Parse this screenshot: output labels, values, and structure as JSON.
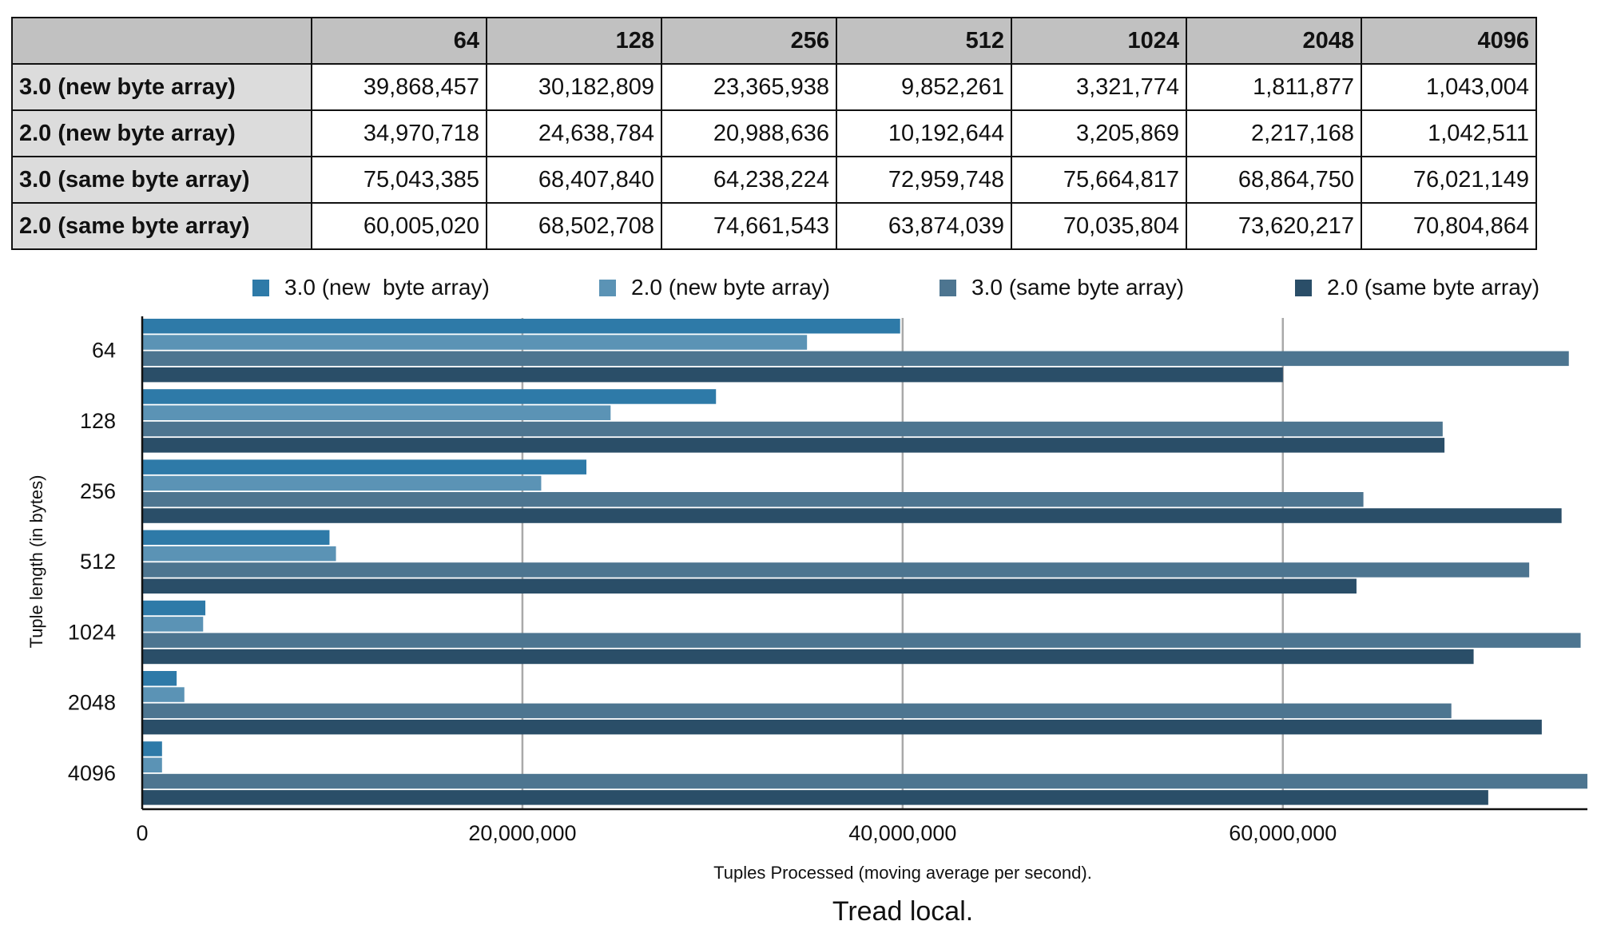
{
  "table": {
    "corner": "",
    "columns": [
      "64",
      "128",
      "256",
      "512",
      "1024",
      "2048",
      "4096"
    ],
    "rows": [
      {
        "label": "3.0 (new  byte array)",
        "cells": [
          "39,868,457",
          "30,182,809",
          "23,365,938",
          "9,852,261",
          "3,321,774",
          "1,811,877",
          "1,043,004"
        ]
      },
      {
        "label": "2.0 (new byte array)",
        "cells": [
          "34,970,718",
          "24,638,784",
          "20,988,636",
          "10,192,644",
          "3,205,869",
          "2,217,168",
          "1,042,511"
        ]
      },
      {
        "label": "3.0 (same byte array)",
        "cells": [
          "75,043,385",
          "68,407,840",
          "64,238,224",
          "72,959,748",
          "75,664,817",
          "68,864,750",
          "76,021,149"
        ]
      },
      {
        "label": "2.0 (same byte array)",
        "cells": [
          "60,005,020",
          "68,502,708",
          "74,661,543",
          "63,874,039",
          "70,035,804",
          "73,620,217",
          "70,804,864"
        ]
      }
    ]
  },
  "chart_data": {
    "type": "bar",
    "orientation": "horizontal",
    "title": "Tread local.",
    "xlabel": "Tuples Processed (moving average per second).",
    "ylabel": "Tuple length (in bytes)",
    "categories": [
      "64",
      "128",
      "256",
      "512",
      "1024",
      "2048",
      "4096"
    ],
    "series": [
      {
        "name": "3.0 (new  byte array)",
        "color": "#2e7aa8",
        "values": [
          39868457,
          30182809,
          23365938,
          9852261,
          3321774,
          1811877,
          1043004
        ]
      },
      {
        "name": "2.0 (new byte array)",
        "color": "#5b93b5",
        "values": [
          34970718,
          24638784,
          20988636,
          10192644,
          3205869,
          2217168,
          1042511
        ]
      },
      {
        "name": "3.0 (same byte array)",
        "color": "#4d7590",
        "values": [
          75043385,
          68407840,
          64238224,
          72959748,
          75664817,
          68864750,
          76021149
        ]
      },
      {
        "name": "2.0 (same byte array)",
        "color": "#2a4e68",
        "values": [
          60005020,
          68502708,
          74661543,
          63874039,
          70035804,
          73620217,
          70804864
        ]
      }
    ],
    "xlim": [
      0,
      76021149
    ],
    "xticks": [
      0,
      20000000,
      40000000,
      60000000
    ],
    "xtick_labels": [
      "0",
      "20,000,000",
      "40,000,000",
      "60,000,000"
    ],
    "grid": "vertical",
    "legend": "top"
  }
}
